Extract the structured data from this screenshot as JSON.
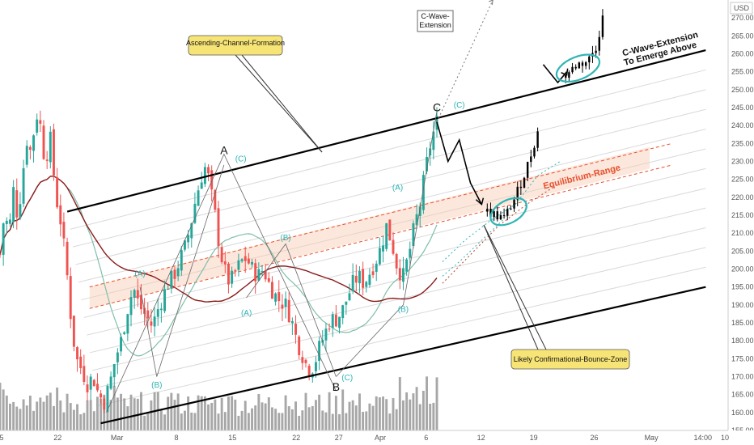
{
  "chart_data": {
    "type": "candlestick",
    "currency": "USD",
    "ylim": [
      155,
      275
    ],
    "y_ticks": [
      155,
      160,
      165,
      170,
      175,
      180,
      185,
      190,
      195,
      200,
      205,
      210,
      215,
      220,
      225,
      230,
      235,
      240,
      245,
      250,
      255,
      260,
      265,
      270
    ],
    "y_tick_labels": [
      "155.00",
      "160.00",
      "165.00",
      "170.00",
      "175.00",
      "180.00",
      "185.00",
      "190.00",
      "195.00",
      "200.00",
      "205.00",
      "210.00",
      "215.00",
      "220.00",
      "225.00",
      "230.00",
      "235.00",
      "240.00",
      "245.00",
      "250.00",
      "255.00",
      "260.00",
      "265.00",
      "270.00"
    ],
    "x_tick_labels": [
      "5",
      "22",
      "Mar",
      "8",
      "15",
      "22",
      "27",
      "Apr",
      "6",
      "12",
      "19",
      "26",
      "May",
      "14:00",
      "10"
    ],
    "price_path": [
      [
        0.0,
        204
      ],
      [
        0.4,
        216
      ],
      [
        0.8,
        210
      ],
      [
        1.2,
        222
      ],
      [
        1.6,
        214
      ],
      [
        2.0,
        226
      ],
      [
        2.4,
        236
      ],
      [
        2.8,
        232
      ],
      [
        3.2,
        244
      ],
      [
        3.6,
        240
      ],
      [
        4.0,
        230
      ],
      [
        4.5,
        236
      ],
      [
        5.0,
        220
      ],
      [
        5.5,
        212
      ],
      [
        6.0,
        198
      ],
      [
        6.4,
        184
      ],
      [
        6.8,
        175
      ],
      [
        7.3,
        172
      ],
      [
        7.8,
        168
      ],
      [
        8.3,
        170
      ],
      [
        8.8,
        165
      ],
      [
        9.3,
        163
      ],
      [
        9.8,
        168
      ],
      [
        10.3,
        175
      ],
      [
        10.8,
        180
      ],
      [
        11.2,
        186
      ],
      [
        11.6,
        192
      ],
      [
        12.0,
        194
      ],
      [
        12.4,
        190
      ],
      [
        12.8,
        188
      ],
      [
        13.2,
        186
      ],
      [
        13.6,
        184
      ],
      [
        14.0,
        188
      ],
      [
        14.5,
        192
      ],
      [
        15.0,
        196
      ],
      [
        15.5,
        198
      ],
      [
        16.0,
        202
      ],
      [
        16.5,
        206
      ],
      [
        17.0,
        212
      ],
      [
        17.5,
        220
      ],
      [
        18.0,
        226
      ],
      [
        18.4,
        229
      ],
      [
        18.8,
        222
      ],
      [
        19.2,
        215
      ],
      [
        19.6,
        206
      ],
      [
        20.0,
        200
      ],
      [
        20.5,
        196
      ],
      [
        21.0,
        199
      ],
      [
        21.5,
        202
      ],
      [
        22.0,
        203
      ],
      [
        22.5,
        200
      ],
      [
        23.0,
        198
      ],
      [
        23.5,
        200
      ],
      [
        24.0,
        196
      ],
      [
        24.5,
        193
      ],
      [
        25.0,
        191
      ],
      [
        25.5,
        190
      ],
      [
        26.0,
        186
      ],
      [
        26.5,
        180
      ],
      [
        27.0,
        176
      ],
      [
        27.5,
        172
      ],
      [
        28.0,
        173
      ],
      [
        28.5,
        178
      ],
      [
        29.0,
        182
      ],
      [
        29.5,
        186
      ],
      [
        30.0,
        186
      ],
      [
        30.5,
        188
      ],
      [
        31.0,
        192
      ],
      [
        31.5,
        196
      ],
      [
        32.0,
        198
      ],
      [
        32.5,
        196
      ],
      [
        33.0,
        199
      ],
      [
        33.5,
        202
      ],
      [
        34.0,
        206
      ],
      [
        34.5,
        212
      ],
      [
        35.0,
        207
      ],
      [
        35.5,
        200
      ],
      [
        36.0,
        198
      ],
      [
        36.5,
        204
      ],
      [
        37.0,
        212
      ],
      [
        37.5,
        218
      ],
      [
        38.0,
        228
      ],
      [
        38.5,
        236
      ],
      [
        39.0,
        241
      ]
    ],
    "projection_path": [
      [
        39.0,
        241
      ],
      [
        40.0,
        230
      ],
      [
        41.0,
        236
      ],
      [
        42.0,
        224
      ],
      [
        43.0,
        218
      ],
      [
        44.0,
        222
      ],
      [
        45.0,
        214
      ],
      [
        46.0,
        222
      ],
      [
        47.0,
        228
      ],
      [
        48.0,
        240
      ]
    ],
    "projection_path_2": [
      [
        48.5,
        254
      ],
      [
        49.5,
        250
      ],
      [
        50.5,
        254
      ],
      [
        51.5,
        256
      ],
      [
        52.5,
        260
      ],
      [
        53.5,
        264
      ],
      [
        54.0,
        270
      ]
    ],
    "wave_c_extension": [
      [
        39.0,
        241
      ],
      [
        44.0,
        275
      ]
    ],
    "equilibrium_range": {
      "start": [
        8.0,
        189
      ],
      "end": [
        60.0,
        229
      ],
      "width": 6
    },
    "channel_upper": {
      "start": [
        6.0,
        216
      ],
      "end": [
        63.0,
        261
      ]
    },
    "channel_lower": {
      "start": [
        9.0,
        157
      ],
      "end": [
        63.0,
        195
      ]
    },
    "wave_labels": [
      {
        "text": "A",
        "x": 20.0,
        "y": 232,
        "kind": "pivot"
      },
      {
        "text": "(C)",
        "x": 21.5,
        "y": 230,
        "kind": "wave"
      },
      {
        "text": "(A)",
        "x": 12.5,
        "y": 198,
        "kind": "wave"
      },
      {
        "text": "(B)",
        "x": 14.0,
        "y": 167,
        "kind": "wave"
      },
      {
        "text": "(B)",
        "x": 25.5,
        "y": 208,
        "kind": "wave"
      },
      {
        "text": "(A)",
        "x": 22.0,
        "y": 187,
        "kind": "wave"
      },
      {
        "text": "B",
        "x": 30.0,
        "y": 166,
        "kind": "pivot"
      },
      {
        "text": "(C)",
        "x": 31.0,
        "y": 169,
        "kind": "wave"
      },
      {
        "text": "(A)",
        "x": 35.5,
        "y": 222,
        "kind": "wave"
      },
      {
        "text": "(B)",
        "x": 36.0,
        "y": 188,
        "kind": "wave"
      },
      {
        "text": "C",
        "x": 39.0,
        "y": 244,
        "kind": "pivot"
      },
      {
        "text": "(C)",
        "x": 41.0,
        "y": 245,
        "kind": "wave"
      }
    ],
    "annotations": {
      "ascending_channel": "Ascending-Channel-Formation",
      "wave_c_top": "C-Wave-",
      "wave_c_bottom": "Extension",
      "emerge_line1": "C-Wave-Extension",
      "emerge_line2": "To Emerge Above",
      "equilibrium": "Equilibrium-Range",
      "bounce_zone": "Likely Confirmational-Bounce-Zone"
    },
    "colors": {
      "bull": "#26a69a",
      "bear": "#ef5350",
      "channel": "#000000",
      "equilibrium": "#e8502b",
      "ellipse": "#2fb4b4",
      "callout_fill": "#f7e476",
      "ma_red": "#8b1a1a",
      "ma_teal": "#7fbfaa"
    }
  }
}
